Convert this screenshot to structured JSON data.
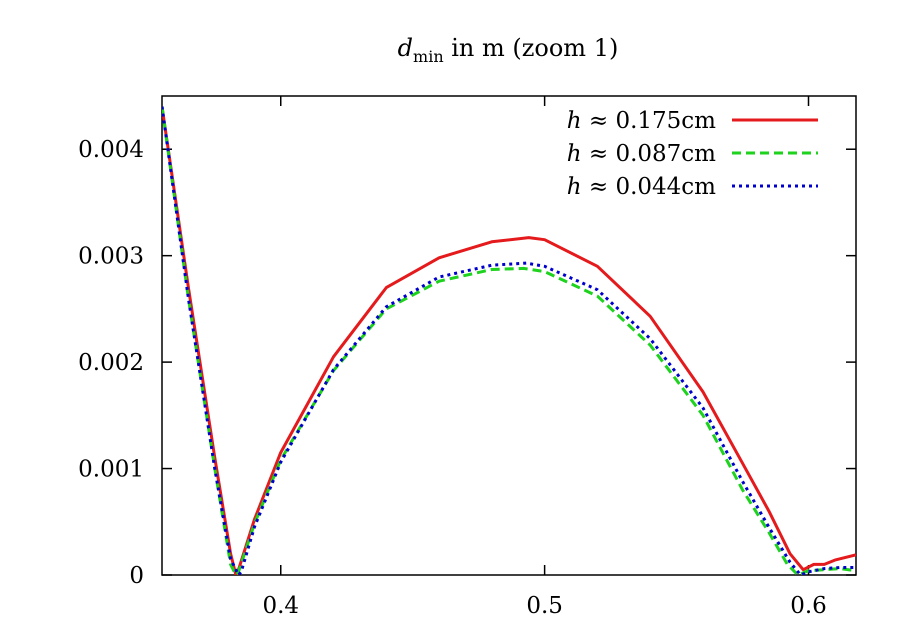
{
  "chart_data": {
    "type": "line",
    "title": {
      "var": "d",
      "sub": "min",
      "rest": " in m (zoom 1)"
    },
    "xlim": [
      0.355,
      0.618
    ],
    "ylim": [
      0,
      0.0045
    ],
    "xticks": [
      0.4,
      0.5,
      0.6
    ],
    "xtick_labels": [
      "0.4",
      "0.5",
      "0.6"
    ],
    "yticks": [
      0,
      0.001,
      0.002,
      0.003,
      0.004
    ],
    "ytick_labels": [
      "0",
      "0.001",
      "0.002",
      "0.003",
      "0.004"
    ],
    "grid": false,
    "legend_position": "top-right",
    "series": [
      {
        "name": "h ≈ 0.175cm",
        "var": "h",
        "rest": " ≈ 0.175cm",
        "color": "#e41a1c",
        "dash": "solid",
        "x": [
          0.355,
          0.365,
          0.375,
          0.381,
          0.383,
          0.384,
          0.39,
          0.4,
          0.42,
          0.44,
          0.46,
          0.48,
          0.494,
          0.5,
          0.52,
          0.54,
          0.56,
          0.575,
          0.585,
          0.593,
          0.598,
          0.602,
          0.606,
          0.61,
          0.618
        ],
        "y": [
          0.0044,
          0.0027,
          0.0011,
          0.0002,
          0.0,
          5e-05,
          0.00052,
          0.00115,
          0.00205,
          0.0027,
          0.00298,
          0.00313,
          0.00317,
          0.00315,
          0.0029,
          0.00243,
          0.00172,
          0.00105,
          0.0006,
          0.0002,
          5e-05,
          0.0001,
          0.0001,
          0.00014,
          0.00019
        ]
      },
      {
        "name": "h ≈ 0.087cm",
        "var": "h",
        "rest": " ≈ 0.087cm",
        "color": "#1ed21e",
        "dash": "dashed",
        "x": [
          0.355,
          0.365,
          0.375,
          0.381,
          0.383,
          0.384,
          0.39,
          0.4,
          0.42,
          0.44,
          0.46,
          0.48,
          0.492,
          0.5,
          0.52,
          0.54,
          0.56,
          0.575,
          0.585,
          0.592,
          0.596,
          0.6,
          0.606,
          0.612,
          0.618
        ],
        "y": [
          0.0044,
          0.0026,
          0.001,
          0.0001,
          0.0,
          3e-05,
          0.00048,
          0.00108,
          0.00192,
          0.0025,
          0.00276,
          0.00287,
          0.00288,
          0.00285,
          0.00262,
          0.00216,
          0.0015,
          0.0008,
          0.0004,
          0.0001,
          0.0,
          4e-05,
          5e-05,
          6e-05,
          4e-05
        ]
      },
      {
        "name": "h ≈ 0.044cm",
        "var": "h",
        "rest": " ≈ 0.044cm",
        "color": "#0000cc",
        "dash": "dotted",
        "x": [
          0.355,
          0.365,
          0.375,
          0.381,
          0.384,
          0.385,
          0.39,
          0.4,
          0.42,
          0.44,
          0.46,
          0.48,
          0.493,
          0.5,
          0.52,
          0.54,
          0.56,
          0.575,
          0.585,
          0.593,
          0.597,
          0.6,
          0.606,
          0.612,
          0.618
        ],
        "y": [
          0.0044,
          0.0026,
          0.001,
          0.00015,
          0.0,
          3e-05,
          0.00045,
          0.00106,
          0.00193,
          0.00252,
          0.0028,
          0.00291,
          0.00293,
          0.0029,
          0.00268,
          0.00222,
          0.00157,
          0.00088,
          0.00045,
          0.00012,
          0.0,
          3e-05,
          6e-05,
          7e-05,
          7e-05
        ]
      }
    ]
  }
}
